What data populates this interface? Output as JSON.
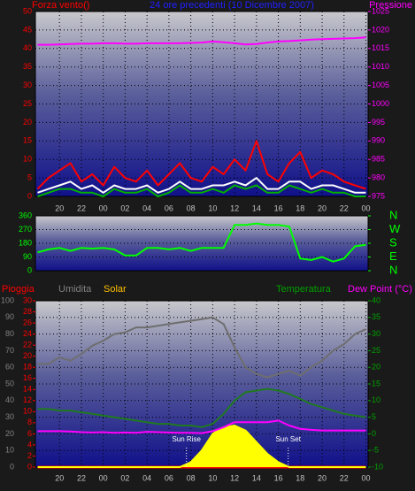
{
  "chart_data": [
    {
      "type": "line",
      "title": "24 ore precedenti (10 Dicembre 2007)",
      "y_label": "Forza vento()",
      "y2_label": "Pressione",
      "x": [
        18,
        19,
        20,
        21,
        22,
        23,
        24,
        25,
        26,
        27,
        28,
        29,
        30,
        31,
        32,
        33,
        34,
        35,
        36,
        37,
        38,
        39,
        40,
        41,
        42,
        43,
        44,
        45,
        46,
        47,
        48
      ],
      "xlim": [
        17.8,
        48.2
      ],
      "xticks": [
        {
          "value": 20,
          "label": "20"
        },
        {
          "value": 22,
          "label": "22"
        },
        {
          "value": 24,
          "label": "00"
        },
        {
          "value": 26,
          "label": "02"
        },
        {
          "value": 28,
          "label": "04"
        },
        {
          "value": 30,
          "label": "06"
        },
        {
          "value": 32,
          "label": "08"
        },
        {
          "value": 34,
          "label": "10"
        },
        {
          "value": 36,
          "label": "12"
        },
        {
          "value": 38,
          "label": "14"
        },
        {
          "value": 40,
          "label": "16"
        },
        {
          "value": 42,
          "label": "18"
        },
        {
          "value": 44,
          "label": "20"
        },
        {
          "value": 46,
          "label": "22"
        },
        {
          "value": 48,
          "label": "00"
        }
      ],
      "ylim": [
        0,
        50
      ],
      "yticks": [
        0,
        5,
        10,
        15,
        20,
        25,
        30,
        35,
        40,
        45,
        50
      ],
      "y2lim": [
        975,
        1025
      ],
      "y2ticks": [
        975,
        980,
        985,
        990,
        995,
        1000,
        1005,
        1010,
        1015,
        1020,
        1025
      ],
      "grid": true,
      "series": [
        {
          "color": "#ff0000",
          "values": [
            2,
            5,
            7,
            9,
            4,
            6,
            3,
            8,
            5,
            4,
            7,
            3,
            6,
            9,
            5,
            4,
            8,
            6,
            10,
            7,
            15,
            6,
            4,
            9,
            12,
            5,
            7,
            6,
            4,
            3,
            2
          ]
        },
        {
          "color": "#ffffff",
          "values": [
            1,
            2,
            3,
            4,
            2,
            3,
            1,
            3,
            2,
            2,
            3,
            1,
            2,
            4,
            2,
            2,
            3,
            3,
            4,
            3,
            5,
            2,
            2,
            4,
            4,
            2,
            3,
            3,
            2,
            1,
            1
          ]
        },
        {
          "color": "#00b000",
          "values": [
            0,
            1,
            2,
            2,
            1,
            1,
            0,
            2,
            1,
            1,
            2,
            0,
            1,
            3,
            1,
            1,
            2,
            1,
            3,
            2,
            3,
            1,
            1,
            3,
            2,
            1,
            2,
            1,
            1,
            0,
            0
          ]
        },
        {
          "color": "#ff00ff",
          "axis": "y2",
          "values": [
            1016.0,
            1016.0,
            1016.1,
            1016.2,
            1016.3,
            1016.3,
            1016.4,
            1016.4,
            1016.3,
            1016.3,
            1016.4,
            1016.4,
            1016.4,
            1016.4,
            1016.5,
            1016.6,
            1016.9,
            1016.7,
            1016.4,
            1016.1,
            1016.2,
            1016.6,
            1016.9,
            1017.0,
            1017.2,
            1017.4,
            1017.5,
            1017.6,
            1017.7,
            1017.8,
            1018.0
          ]
        }
      ]
    },
    {
      "type": "line",
      "x": [
        18,
        19,
        20,
        21,
        22,
        23,
        24,
        25,
        26,
        27,
        28,
        29,
        30,
        31,
        32,
        33,
        34,
        35,
        36,
        37,
        38,
        39,
        40,
        41,
        42,
        43,
        44,
        45,
        46,
        47,
        48
      ],
      "xlim": [
        17.8,
        48.2
      ],
      "ylim": [
        0,
        360
      ],
      "yticks": [
        0,
        90,
        180,
        270,
        360
      ],
      "y2lim": [
        0,
        360
      ],
      "y2ticks": [
        {
          "value": 0,
          "label": "N"
        },
        {
          "value": 90,
          "label": "E"
        },
        {
          "value": 180,
          "label": "S"
        },
        {
          "value": 270,
          "label": "W"
        },
        {
          "value": 360,
          "label": "N"
        }
      ],
      "grid": true,
      "series": [
        {
          "color": "#00ff00",
          "values": [
            120,
            140,
            150,
            130,
            150,
            145,
            150,
            140,
            100,
            100,
            150,
            150,
            140,
            150,
            130,
            150,
            150,
            150,
            300,
            300,
            310,
            300,
            300,
            290,
            80,
            70,
            90,
            60,
            80,
            160,
            170
          ]
        }
      ]
    },
    {
      "type": "line",
      "x": [
        18,
        19,
        20,
        21,
        22,
        23,
        24,
        25,
        26,
        27,
        28,
        29,
        30,
        31,
        32,
        33,
        34,
        35,
        36,
        37,
        38,
        39,
        40,
        41,
        42,
        43,
        44,
        45,
        46,
        47,
        48
      ],
      "xlim": [
        17.8,
        48.2
      ],
      "xticks": [
        {
          "value": 20,
          "label": "20"
        },
        {
          "value": 22,
          "label": "22"
        },
        {
          "value": 24,
          "label": "00"
        },
        {
          "value": 26,
          "label": "02"
        },
        {
          "value": 28,
          "label": "04"
        },
        {
          "value": 30,
          "label": "06"
        },
        {
          "value": 32,
          "label": "08"
        },
        {
          "value": 34,
          "label": "10"
        },
        {
          "value": 36,
          "label": "12"
        },
        {
          "value": 38,
          "label": "14"
        },
        {
          "value": 40,
          "label": "16"
        },
        {
          "value": 42,
          "label": "18"
        },
        {
          "value": 44,
          "label": "20"
        },
        {
          "value": 46,
          "label": "22"
        },
        {
          "value": 48,
          "label": "00"
        }
      ],
      "ylim": [
        0,
        100
      ],
      "yticks": [
        0,
        10,
        20,
        30,
        40,
        50,
        60,
        70,
        80,
        90,
        100
      ],
      "y3lim": [
        0,
        30
      ],
      "y3ticks": [
        0,
        2,
        4,
        6,
        8,
        10,
        12,
        14,
        16,
        18,
        20,
        22,
        24,
        26,
        28,
        30
      ],
      "y2lim": [
        -10,
        40
      ],
      "y2ticks": [
        -10,
        -5,
        0,
        5,
        10,
        15,
        20,
        25,
        30,
        35,
        40
      ],
      "grid": true,
      "series": [
        {
          "name": "Pioggia",
          "color": "#ff0000",
          "axis": "y3",
          "values": [
            0,
            0,
            0,
            0,
            0,
            0,
            0,
            0,
            0,
            0,
            0,
            0,
            0,
            0,
            0,
            0,
            0,
            0,
            0,
            0,
            0,
            0,
            0,
            0,
            0,
            0,
            0,
            0,
            0,
            0,
            0
          ]
        },
        {
          "name": "Umidita",
          "color": "#6e6e6e",
          "values": [
            62,
            62,
            66,
            64,
            68,
            73,
            76,
            80,
            81,
            84,
            84,
            85,
            86,
            87,
            88,
            89,
            90,
            86,
            72,
            60,
            56,
            54,
            56,
            58,
            55,
            60,
            64,
            70,
            74,
            80,
            83
          ]
        },
        {
          "name": "Solar",
          "color": "#ffff00",
          "area": true,
          "values": [
            0,
            0,
            0,
            0,
            0,
            0,
            0,
            0,
            0,
            0,
            0,
            0,
            0,
            0,
            3,
            10,
            20,
            24,
            25,
            22,
            15,
            8,
            3,
            0,
            0,
            0,
            0,
            0,
            0,
            0,
            0
          ]
        },
        {
          "name": "Temperatura",
          "color": "#1f7a1f",
          "axis": "y2",
          "values": [
            7.5,
            7.5,
            7,
            7,
            6.5,
            6,
            5.5,
            5,
            4.5,
            4,
            3.5,
            3,
            3,
            2.5,
            2.5,
            2,
            3,
            6,
            10,
            12.5,
            13,
            13.5,
            13,
            12,
            10.5,
            9,
            8,
            7,
            6,
            5.5,
            5
          ]
        },
        {
          "name": "Dew Point (°C)",
          "color": "#ff00ff",
          "axis": "y2",
          "values": [
            0.8,
            0.8,
            0.8,
            0.7,
            0.5,
            0.4,
            0.5,
            0.3,
            0.4,
            0.3,
            0.6,
            0.5,
            0.4,
            0.3,
            0.3,
            0.2,
            0.8,
            2,
            3.5,
            3.5,
            3.5,
            3.5,
            4,
            2.5,
            1.5,
            1.2,
            1,
            1,
            1,
            1,
            1
          ]
        }
      ],
      "annotations": [
        {
          "text": "Sun Rise",
          "x": 31.6
        },
        {
          "text": "Sun Set",
          "x": 40.9
        }
      ]
    }
  ]
}
